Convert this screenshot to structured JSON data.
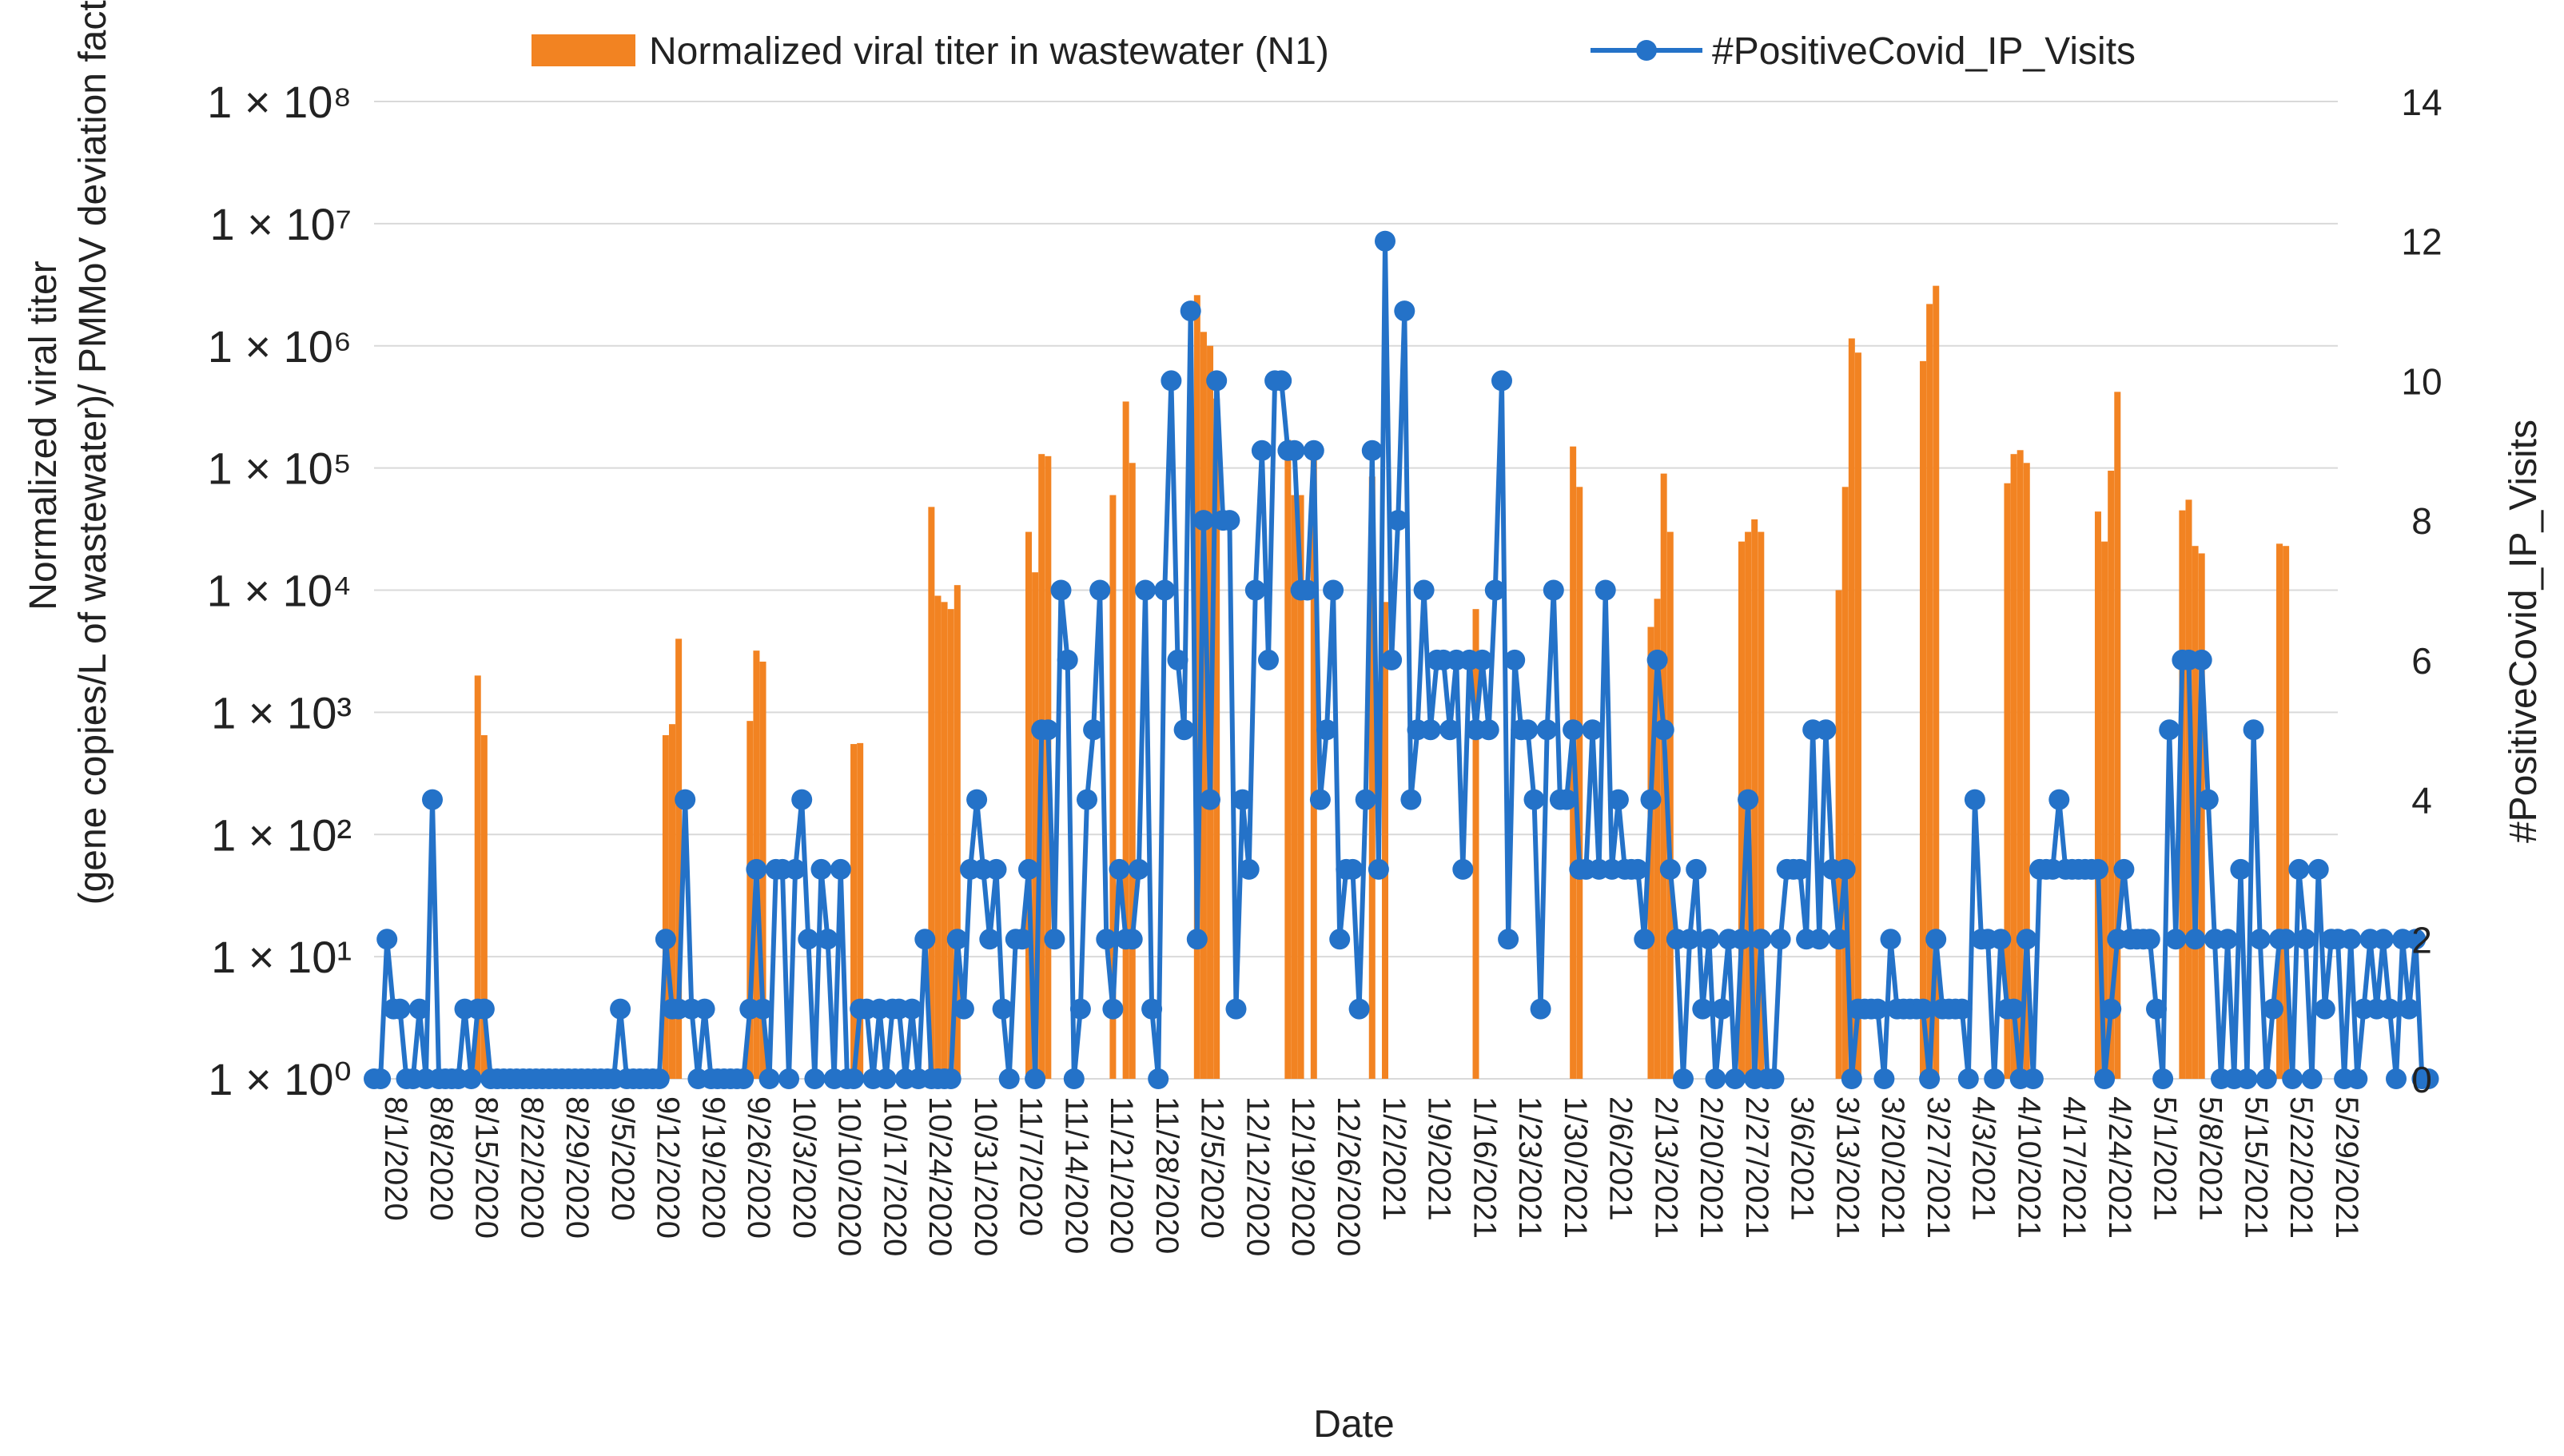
{
  "chart_data": {
    "type": "bar+line",
    "xlabel": "Date",
    "ylabel_left_line1": "Normalized viral titer",
    "ylabel_left_line2": "(gene copies/L of wastewater)/ PMMoV deviation factor",
    "ylabel_right": "#PositiveCovid_IP_Visits",
    "y_left": {
      "scale": "log",
      "min_exponent": 0,
      "max_exponent": 8,
      "tick_labels": [
        "1 × 10⁰",
        "1 × 10¹",
        "1 × 10²",
        "1 × 10³",
        "1 × 10⁴",
        "1 × 10⁵",
        "1 × 10⁶",
        "1 × 10⁷",
        "1 × 10⁸"
      ]
    },
    "y_right": {
      "min": 0,
      "max": 14,
      "ticks": [
        "0",
        "2",
        "4",
        "6",
        "8",
        "10",
        "12",
        "14"
      ]
    },
    "x_day_range": [
      0,
      303
    ],
    "x_tick_labels": [
      "8/1/2020",
      "8/8/2020",
      "8/15/2020",
      "8/22/2020",
      "8/29/2020",
      "9/5/2020",
      "9/12/2020",
      "9/19/2020",
      "9/26/2020",
      "10/3/2020",
      "10/10/2020",
      "10/17/2020",
      "10/24/2020",
      "10/31/2020",
      "11/7/2020",
      "11/14/2020",
      "11/21/2020",
      "11/28/2020",
      "12/5/2020",
      "12/12/2020",
      "12/19/2020",
      "12/26/2020",
      "1/2/2021",
      "1/9/2021",
      "1/16/2021",
      "1/23/2021",
      "1/30/2021",
      "2/6/2021",
      "2/13/2021",
      "2/20/2021",
      "2/27/2021",
      "3/6/2021",
      "3/13/2021",
      "3/20/2021",
      "3/27/2021",
      "4/3/2021",
      "4/10/2021",
      "4/17/2021",
      "4/24/2021",
      "5/1/2021",
      "5/8/2021",
      "5/15/2021",
      "5/22/2021",
      "5/29/2021"
    ],
    "series": [
      {
        "name": "Normalized viral titer in wastewater (N1)",
        "kind": "bar",
        "color": "#f28322",
        "points": [
          [
            16,
            2000
          ],
          [
            17,
            650
          ],
          [
            45,
            650
          ],
          [
            46,
            800
          ],
          [
            47,
            4000
          ],
          [
            58,
            850
          ],
          [
            59,
            3200
          ],
          [
            60,
            2600
          ],
          [
            74,
            550
          ],
          [
            75,
            560
          ],
          [
            86,
            48000
          ],
          [
            87,
            9000
          ],
          [
            88,
            8000
          ],
          [
            89,
            7000
          ],
          [
            90,
            11000
          ],
          [
            101,
            30000
          ],
          [
            102,
            14000
          ],
          [
            103,
            130000
          ],
          [
            104,
            125000
          ],
          [
            114,
            60000
          ],
          [
            116,
            350000
          ],
          [
            117,
            110000
          ],
          [
            127,
            2600000
          ],
          [
            128,
            1300000
          ],
          [
            129,
            1000000
          ],
          [
            130,
            370000
          ],
          [
            141,
            170000
          ],
          [
            142,
            60000
          ],
          [
            143,
            60000
          ],
          [
            145,
            160000
          ],
          [
            154,
            85000
          ],
          [
            156,
            8000
          ],
          [
            170,
            7000
          ],
          [
            185,
            150000
          ],
          [
            186,
            70000
          ],
          [
            197,
            5000
          ],
          [
            198,
            8500
          ],
          [
            199,
            90000
          ],
          [
            200,
            30000
          ],
          [
            211,
            25000
          ],
          [
            212,
            30000
          ],
          [
            213,
            38000
          ],
          [
            214,
            30000
          ],
          [
            226,
            10000
          ],
          [
            227,
            70000
          ],
          [
            228,
            1150000
          ],
          [
            229,
            880000
          ],
          [
            239,
            750000
          ],
          [
            240,
            2200000
          ],
          [
            241,
            3100000
          ],
          [
            252,
            75000
          ],
          [
            253,
            130000
          ],
          [
            254,
            140000
          ],
          [
            255,
            110000
          ],
          [
            266,
            44000
          ],
          [
            267,
            25000
          ],
          [
            268,
            95000
          ],
          [
            269,
            420000
          ],
          [
            279,
            45000
          ],
          [
            280,
            55000
          ],
          [
            281,
            23000
          ],
          [
            282,
            20000
          ],
          [
            294,
            24000
          ],
          [
            295,
            23000
          ]
        ]
      },
      {
        "name": "#PositiveCovid_IP_Visits",
        "kind": "line",
        "color": "#2472c8",
        "values": [
          0,
          0,
          2,
          1,
          1,
          0,
          0,
          1,
          0,
          4,
          0,
          0,
          0,
          0,
          1,
          0,
          1,
          1,
          0,
          0,
          0,
          0,
          0,
          0,
          0,
          0,
          0,
          0,
          0,
          0,
          0,
          0,
          0,
          0,
          0,
          0,
          0,
          0,
          1,
          0,
          0,
          0,
          0,
          0,
          0,
          2,
          1,
          1,
          4,
          1,
          0,
          1,
          0,
          0,
          0,
          0,
          0,
          0,
          1,
          3,
          1,
          0,
          3,
          3,
          0,
          3,
          4,
          2,
          0,
          3,
          2,
          0,
          3,
          0,
          0,
          1,
          1,
          0,
          1,
          0,
          1,
          1,
          0,
          1,
          0,
          2,
          0,
          0,
          0,
          0,
          2,
          1,
          3,
          4,
          3,
          2,
          3,
          1,
          0,
          2,
          2,
          3,
          0,
          5,
          5,
          2,
          7,
          6,
          0,
          1,
          4,
          5,
          7,
          2,
          1,
          3,
          2,
          2,
          3,
          7,
          1,
          0,
          7,
          10,
          6,
          5,
          11,
          2,
          8,
          4,
          10,
          8,
          8,
          1,
          4,
          3,
          7,
          9,
          6,
          10,
          10,
          9,
          9,
          7,
          7,
          9,
          4,
          5,
          7,
          2,
          3,
          3,
          1,
          4,
          9,
          3,
          12,
          6,
          8,
          11,
          4,
          5,
          7,
          5,
          6,
          6,
          5,
          6,
          3,
          6,
          5,
          6,
          5,
          7,
          10,
          2,
          6,
          5,
          5,
          4,
          1,
          5,
          7,
          4,
          4,
          5,
          3,
          3,
          5,
          3,
          7,
          3,
          4,
          3,
          3,
          3,
          2,
          4,
          6,
          5,
          3,
          2,
          0,
          2,
          3,
          1,
          2,
          0,
          1,
          2,
          0,
          2,
          4,
          0,
          2,
          0,
          0,
          2,
          3,
          3,
          3,
          2,
          5,
          2,
          5,
          3,
          2,
          3,
          0,
          1,
          1,
          1,
          1,
          0,
          2,
          1,
          1,
          1,
          1,
          1,
          0,
          2,
          1,
          1,
          1,
          1,
          0,
          4,
          2,
          2,
          0,
          2,
          1,
          1,
          0,
          2,
          0,
          3,
          3,
          3,
          4,
          3,
          3,
          3,
          3,
          3,
          3,
          0,
          1,
          2,
          3,
          2,
          2,
          2,
          2,
          1,
          0,
          5,
          2,
          6,
          6,
          2,
          6,
          4,
          2,
          0,
          2,
          0,
          3,
          0,
          5,
          2,
          0,
          1,
          2,
          2,
          0,
          3,
          2,
          0,
          3,
          1,
          2,
          2,
          0,
          2,
          0,
          1,
          2,
          1,
          2,
          1,
          0,
          2,
          1,
          2,
          0,
          0
        ]
      }
    ]
  }
}
